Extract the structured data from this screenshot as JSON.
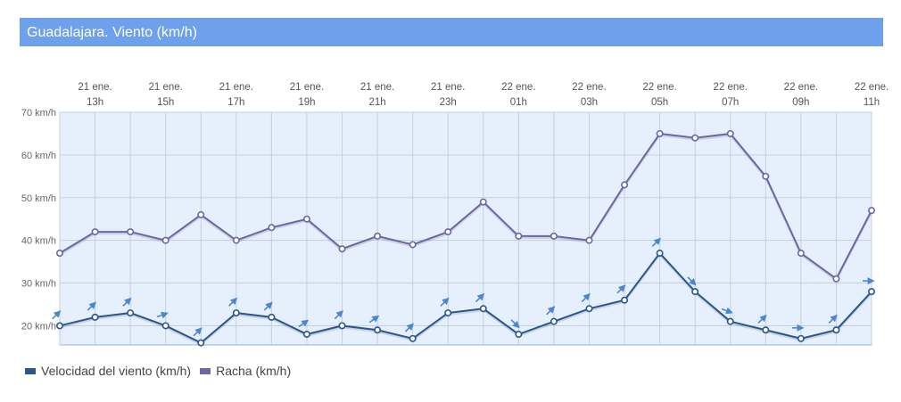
{
  "header": {
    "title": "Guadalajara. Viento (km/h)"
  },
  "colors": {
    "wind": "#2a5590",
    "gust": "#6a66a8",
    "arrow": "#4d86d0",
    "title_bg": "#6fa0ec",
    "plot_bg": "#e6f0fc"
  },
  "chart_data": {
    "type": "line",
    "x_labels": [
      [
        "21 ene.",
        "13h"
      ],
      [
        "21 ene.",
        "15h"
      ],
      [
        "21 ene.",
        "17h"
      ],
      [
        "21 ene.",
        "19h"
      ],
      [
        "21 ene.",
        "21h"
      ],
      [
        "21 ene.",
        "23h"
      ],
      [
        "22 ene.",
        "01h"
      ],
      [
        "22 ene.",
        "03h"
      ],
      [
        "22 ene.",
        "05h"
      ],
      [
        "22 ene.",
        "07h"
      ],
      [
        "22 ene.",
        "09h"
      ],
      [
        "22 ene.",
        "11h"
      ]
    ],
    "ylim": [
      15.5,
      70
    ],
    "yticks": [
      20,
      30,
      40,
      50,
      60,
      70
    ],
    "ytick_labels": [
      "20 km/h",
      "30 km/h",
      "40 km/h",
      "50 km/h",
      "60 km/h",
      "70 km/h"
    ],
    "x_points": 24,
    "series": [
      {
        "name": "Velocidad del viento (km/h)",
        "values": [
          20,
          22,
          23,
          20,
          16,
          23,
          22,
          18,
          20,
          19,
          17,
          23,
          24,
          18,
          21,
          24,
          26,
          37,
          28,
          21,
          19,
          17,
          19,
          28
        ],
        "wind_direction_deg": [
          225,
          225,
          225,
          250,
          225,
          225,
          225,
          235,
          225,
          235,
          225,
          225,
          225,
          315,
          225,
          225,
          225,
          225,
          315,
          290,
          225,
          270,
          225,
          270
        ]
      },
      {
        "name": "Racha (km/h)",
        "values": [
          37,
          42,
          42,
          40,
          46,
          40,
          43,
          45,
          38,
          41,
          39,
          42,
          49,
          41,
          41,
          40,
          53,
          65,
          64,
          65,
          55,
          37,
          31,
          47
        ]
      }
    ],
    "legend_position": "bottom-left",
    "grid": true
  }
}
